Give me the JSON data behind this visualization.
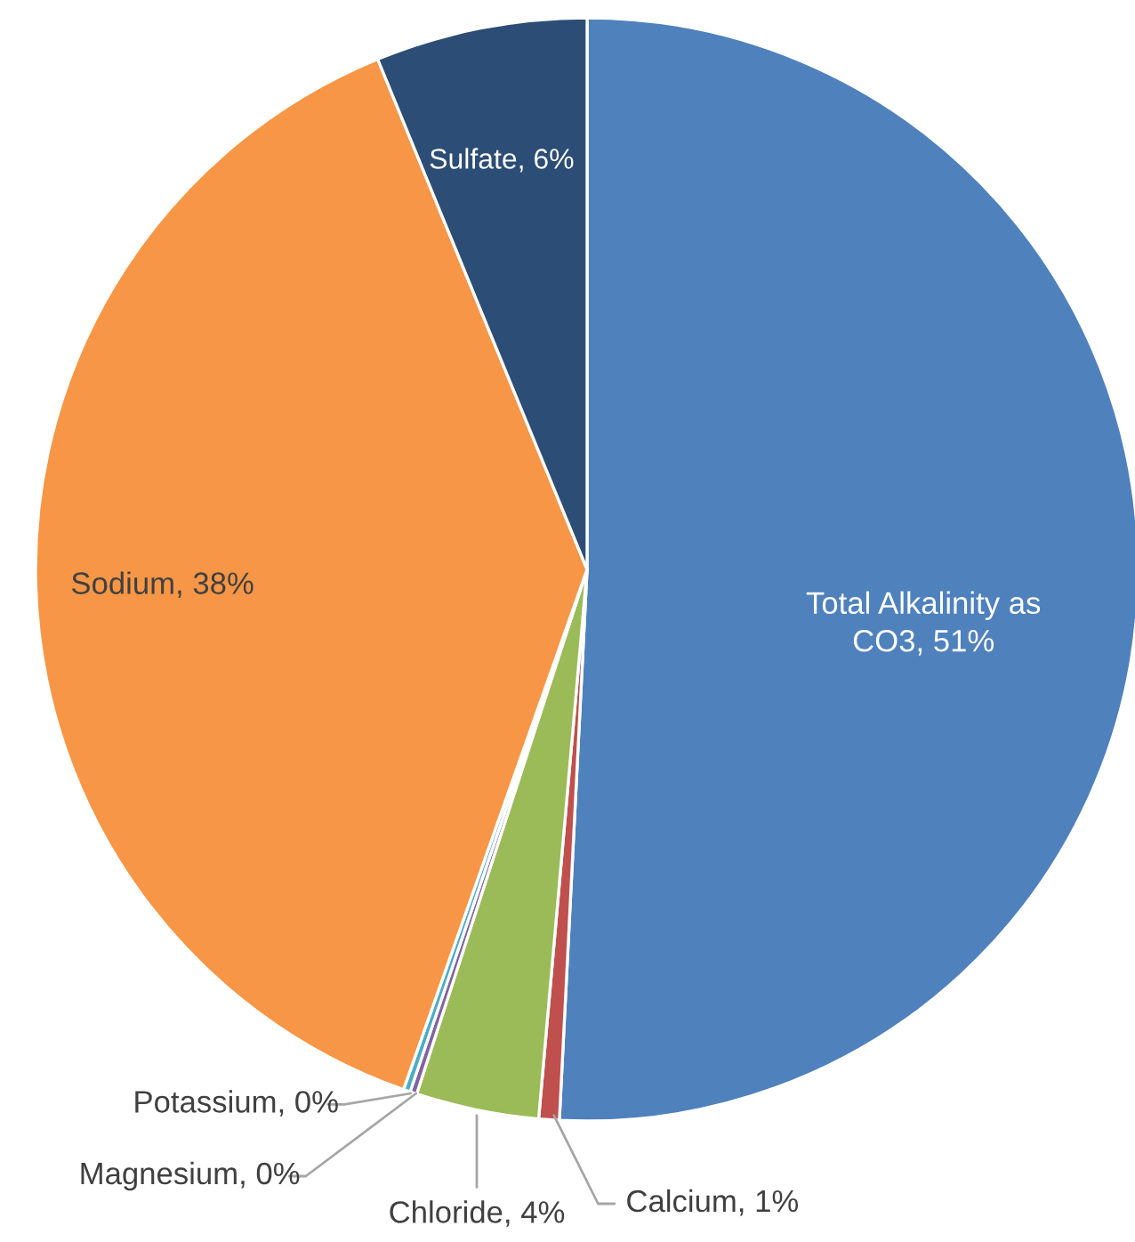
{
  "chart_data": {
    "type": "pie",
    "categories": [
      "Total Alkalinity as CO3",
      "Calcium",
      "Chloride",
      "Magnesium",
      "Potassium",
      "Sodium",
      "Sulfate"
    ],
    "values": [
      50.8,
      0.6,
      3.6,
      0.2,
      0.2,
      38.4,
      6.2
    ],
    "value_labels": [
      "51%",
      "1%",
      "4%",
      "0%",
      "0%",
      "38%",
      "6%"
    ],
    "colors": [
      "#4f81bd",
      "#c0504d",
      "#9bbb59",
      "#8064a2",
      "#4bacc6",
      "#f79646",
      "#2c4d75"
    ]
  }
}
